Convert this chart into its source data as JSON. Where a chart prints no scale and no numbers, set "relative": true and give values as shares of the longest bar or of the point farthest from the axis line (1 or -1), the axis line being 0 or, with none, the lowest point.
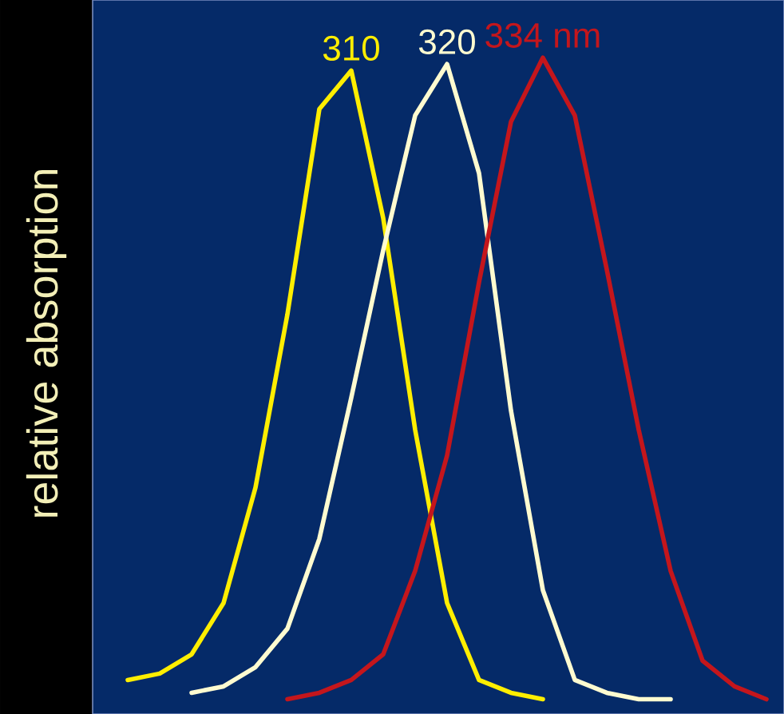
{
  "chart_data": {
    "type": "line",
    "relative": true,
    "marker": "none",
    "ylabel": "relative absorption",
    "categories": [
      null,
      null,
      null,
      null,
      null,
      null,
      null,
      null,
      null,
      null,
      null,
      null,
      null,
      null,
      null,
      null,
      null,
      null,
      null,
      null,
      null,
      null
    ],
    "series": [
      {
        "name": "310",
        "color": "#ffee00",
        "values": [
          null,
          0.03,
          0.04,
          0.07,
          0.15,
          0.33,
          0.6,
          0.92,
          0.98,
          0.75,
          0.42,
          0.15,
          0.03,
          0.01,
          0.0,
          null,
          null,
          null,
          null,
          null,
          null,
          null
        ]
      },
      {
        "name": "320",
        "color": "#fffbd0",
        "values": [
          null,
          null,
          null,
          0.01,
          0.02,
          0.05,
          0.11,
          0.25,
          0.47,
          0.7,
          0.91,
          0.99,
          0.82,
          0.45,
          0.17,
          0.03,
          0.01,
          0.0,
          0.0,
          null,
          null,
          null
        ]
      },
      {
        "name": "334 nm",
        "color": "#c4161c",
        "values": [
          null,
          null,
          null,
          null,
          null,
          null,
          0.0,
          0.01,
          0.03,
          0.07,
          0.2,
          0.38,
          0.65,
          0.9,
          1.0,
          0.91,
          0.67,
          0.42,
          0.2,
          0.06,
          0.02,
          0.0
        ]
      }
    ]
  }
}
